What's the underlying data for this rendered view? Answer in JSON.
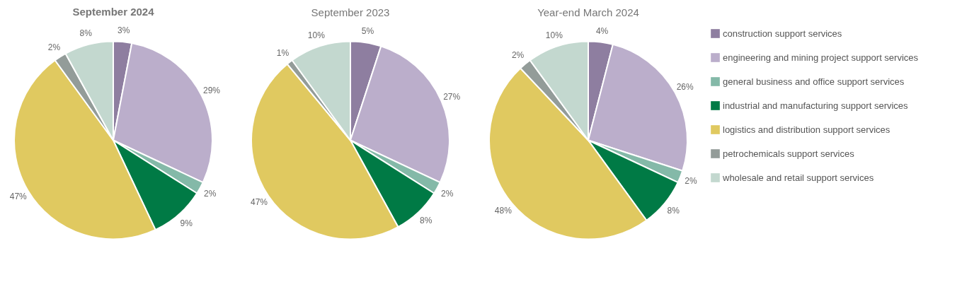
{
  "chart_data": [
    {
      "type": "pie",
      "title": "September 2024",
      "categories": [
        "construction support services",
        "engineering and mining project support services",
        "general business and office support services",
        "industrial and manufacturing support services",
        "logistics and distribution support services",
        "petrochemicals support services",
        "wholesale and retail support services"
      ],
      "values": [
        3,
        29,
        2,
        9,
        47,
        2,
        8
      ],
      "value_labels": [
        "3%",
        "29%",
        "2%",
        "9%",
        "47%",
        "2%",
        "8%"
      ],
      "colors": [
        "#8e7ea0",
        "#bbaecb",
        "#84b9a8",
        "#007a45",
        "#e0c960",
        "#939c99",
        "#c3d8cf"
      ],
      "legend": "right"
    },
    {
      "type": "pie",
      "title": "September 2023",
      "values": [
        5,
        27,
        2,
        8,
        47,
        1,
        10
      ],
      "value_labels": [
        "5%",
        "27%",
        "2%",
        "8%",
        "47%",
        "1%",
        "10%"
      ],
      "colors": [
        "#8e7ea0",
        "#bbaecb",
        "#84b9a8",
        "#007a45",
        "#e0c960",
        "#939c99",
        "#c3d8cf"
      ]
    },
    {
      "type": "pie",
      "title": "Year-end March 2024",
      "values": [
        4,
        26,
        2,
        8,
        48,
        2,
        10
      ],
      "value_labels": [
        "4%",
        "26%",
        "2%",
        "8%",
        "48%",
        "2%",
        "10%"
      ],
      "colors": [
        "#8e7ea0",
        "#bbaecb",
        "#84b9a8",
        "#007a45",
        "#e0c960",
        "#939c99",
        "#c3d8cf"
      ]
    }
  ]
}
